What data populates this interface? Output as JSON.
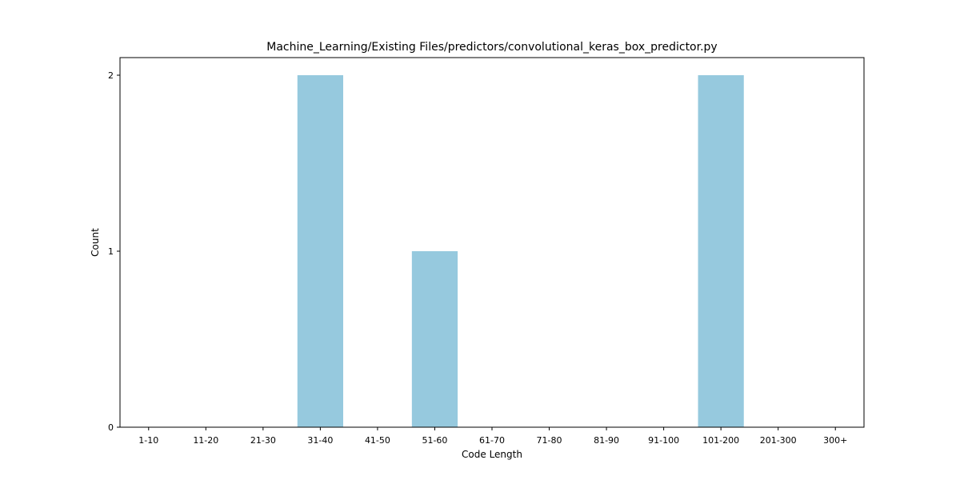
{
  "chart_data": {
    "type": "bar",
    "title": "Machine_Learning/Existing Files/predictors/convolutional_keras_box_predictor.py",
    "xlabel": "Code Length",
    "ylabel": "Count",
    "categories": [
      "1-10",
      "11-20",
      "21-30",
      "31-40",
      "41-50",
      "51-60",
      "61-70",
      "71-80",
      "81-90",
      "91-100",
      "101-200",
      "201-300",
      "300+"
    ],
    "values": [
      0,
      0,
      0,
      2,
      0,
      1,
      0,
      0,
      0,
      0,
      2,
      0,
      0
    ],
    "ylim": [
      0,
      2.1
    ],
    "yticks": [
      0,
      1,
      2
    ],
    "grid": false,
    "legend": "none",
    "bar_color": "#96c9de"
  }
}
